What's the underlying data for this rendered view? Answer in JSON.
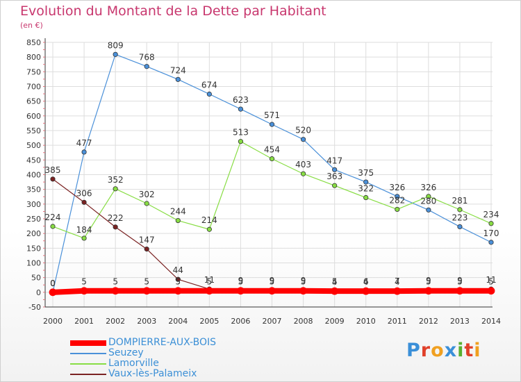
{
  "title": "Evolution du Montant de la Dette par Habitant",
  "subtitle": "(en €)",
  "logo": "Proxiti",
  "colors": {
    "title": "#c8376e",
    "grid": "#dddddd",
    "axis": "#333333",
    "legend_text": "#3b8fd6"
  },
  "chart_data": {
    "type": "line",
    "title": "Evolution du Montant de la Dette par Habitant",
    "ylabel": "(en €)",
    "xlabel": "",
    "x": [
      "2000",
      "2001",
      "2002",
      "2003",
      "2004",
      "2005",
      "2006",
      "2007",
      "2008",
      "2009",
      "2010",
      "2011",
      "2012",
      "2013",
      "2014"
    ],
    "ylim": [
      -50,
      850
    ],
    "yticks": [
      -50,
      0,
      50,
      100,
      150,
      200,
      250,
      300,
      350,
      400,
      450,
      500,
      550,
      600,
      650,
      700,
      750,
      800,
      850
    ],
    "grid": true,
    "legend": "bottom-left",
    "series": [
      {
        "name": "DOMPIERRE-AUX-BOIS",
        "color": "#ff0000",
        "values": [
          0,
          5,
          5,
          5,
          5,
          5,
          5,
          5,
          5,
          4,
          4,
          4,
          5,
          5,
          5
        ],
        "labels": [
          "0",
          "5",
          "5",
          "5",
          "5",
          "5",
          "5",
          "5",
          "5",
          "4",
          "4",
          "4",
          "5",
          "5",
          "5"
        ]
      },
      {
        "name": "Seuzey",
        "color": "#4a90d9",
        "values": [
          0,
          477,
          809,
          768,
          724,
          674,
          623,
          571,
          520,
          417,
          375,
          326,
          280,
          223,
          170
        ],
        "labels": [
          "0",
          "477",
          "809",
          "768",
          "724",
          "674",
          "623",
          "571",
          "520",
          "417",
          "375",
          "326",
          "280",
          "223",
          "170"
        ]
      },
      {
        "name": "Lamorville",
        "color": "#88dd44",
        "values": [
          224,
          184,
          352,
          302,
          244,
          214,
          513,
          454,
          403,
          363,
          322,
          282,
          326,
          281,
          234
        ],
        "labels": [
          "224",
          "184",
          "352",
          "302",
          "244",
          "214",
          "513",
          "454",
          "403",
          "363",
          "322",
          "282",
          "326",
          "281",
          "234"
        ]
      },
      {
        "name": "Vaux-lès-Palameix",
        "color": "#7a2222",
        "values": [
          385,
          306,
          222,
          147,
          44,
          11,
          9,
          9,
          9,
          5,
          6,
          7,
          9,
          9,
          11
        ],
        "labels": [
          "385",
          "306",
          "222",
          "147",
          "44",
          "11",
          "9",
          "9",
          "9",
          "5",
          "6",
          "7",
          "9",
          "9",
          "11"
        ]
      }
    ]
  }
}
